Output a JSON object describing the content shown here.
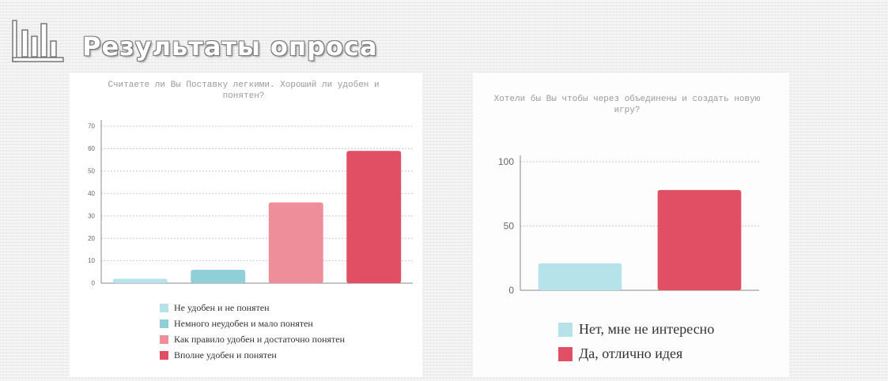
{
  "header": {
    "title": "Результаты опроса",
    "icon": "bar-chart-icon"
  },
  "colors": {
    "light_teal": "#b6e3ea",
    "teal": "#8fd0d8",
    "pink": "#ee8e9a",
    "red": "#e04f63",
    "grid": "#c8c8c8",
    "axis": "#888888"
  },
  "chart_data": [
    {
      "type": "bar",
      "title": "Считаете ли Вы Поставку легкими. Хороший ли удобен и понятен?",
      "categories": [
        "Не удобен и не понятен",
        "Немного неудобен и мало понятен",
        "Как правило удобен и достаточно понятен",
        "Вполне удобен и понятен"
      ],
      "values": [
        2,
        6,
        36,
        59
      ],
      "colors": [
        "#b6e3ea",
        "#8fd0d8",
        "#ee8e9a",
        "#e04f63"
      ],
      "yticks": [
        0,
        10,
        20,
        30,
        40,
        50,
        60,
        70
      ],
      "ylim": [
        0,
        70
      ],
      "grid": true,
      "legend": "bottom"
    },
    {
      "type": "bar",
      "title": "Хотели бы Вы чтобы через объединены и создать новую игру?",
      "categories": [
        "Нет, мне не интересно",
        "Да, отлично идея"
      ],
      "values": [
        21,
        78
      ],
      "colors": [
        "#b6e3ea",
        "#e04f63"
      ],
      "yticks": [
        0,
        50,
        100
      ],
      "ylim": [
        0,
        100
      ],
      "grid": true,
      "legend": "bottom"
    }
  ]
}
